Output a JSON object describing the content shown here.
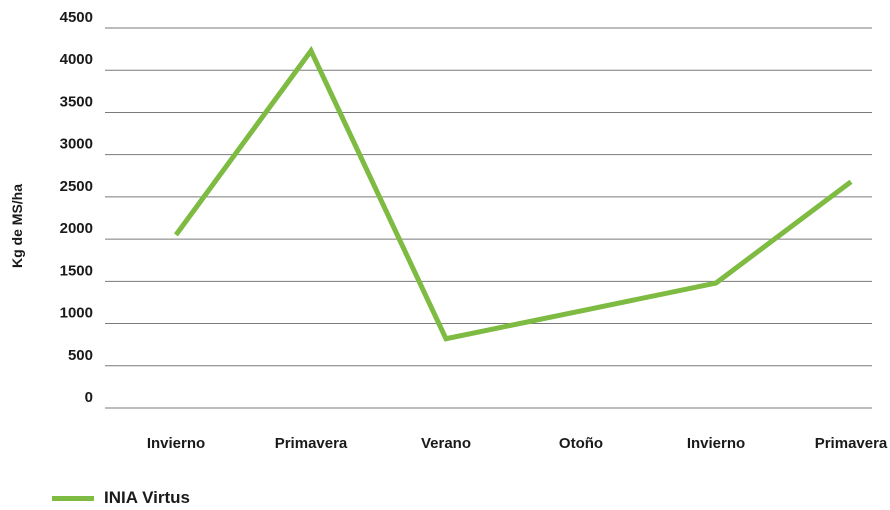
{
  "chart_data": {
    "type": "line",
    "title": "",
    "xlabel": "",
    "ylabel": "Kg de MS/ha",
    "categories": [
      "Invierno",
      "Primavera",
      "Verano",
      "Otoño",
      "Invierno",
      "Primavera"
    ],
    "yticks": [
      "0",
      "500",
      "1000",
      "1500",
      "2000",
      "2500",
      "3000",
      "3500",
      "4000",
      "4500"
    ],
    "ylim": [
      0,
      4500
    ],
    "grid": true,
    "legend_position": "bottom-left",
    "series": [
      {
        "name": "INIA Virtus",
        "color": "#7dbb42",
        "values": [
          2050,
          4230,
          820,
          1150,
          1480,
          2680
        ]
      }
    ]
  }
}
